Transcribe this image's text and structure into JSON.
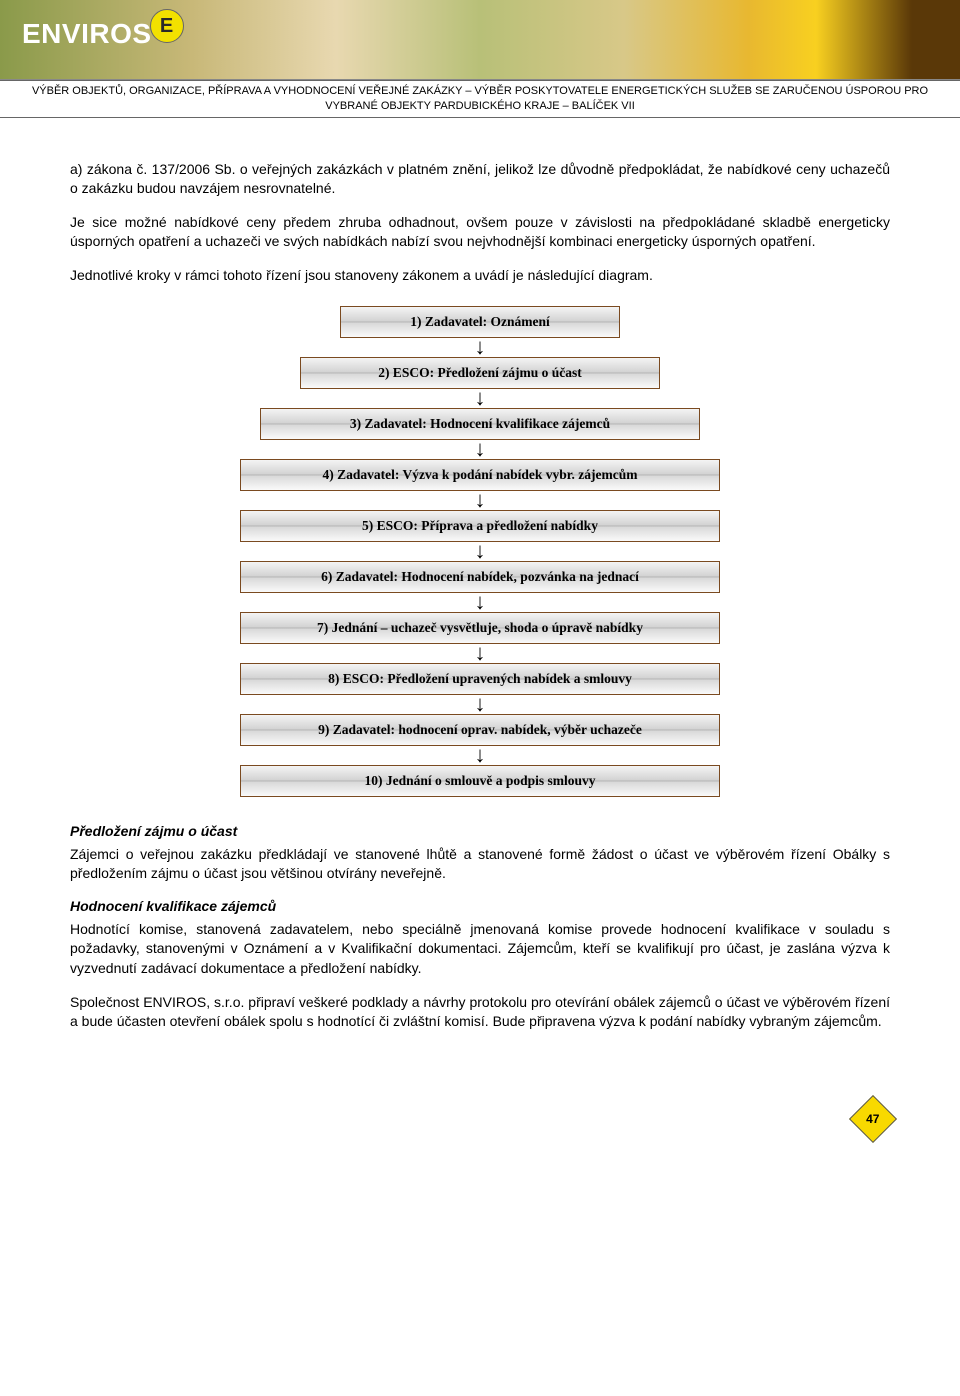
{
  "banner": {
    "logo_text": "ENVIROS",
    "logo_badge": "E"
  },
  "doc_title": {
    "line1": "VÝBĚR OBJEKTŮ, ORGANIZACE, PŘÍPRAVA A VYHODNOCENÍ VEŘEJNÉ ZAKÁZKY – VÝBĚR POSKYTOVATELE ENERGETICKÝCH SLUŽEB SE ZARUČENOU ÚSPOROU PRO",
    "line2": "VYBRANÉ OBJEKTY PARDUBICKÉHO KRAJE – BALÍČEK VII"
  },
  "paragraphs": {
    "p1": "a) zákona č. 137/2006 Sb. o veřejných zakázkách v platném znění, jelikož lze důvodně předpokládat, že nabídkové ceny uchazečů o zakázku budou navzájem nesrovnatelné.",
    "p2": "Je sice možné nabídkové ceny předem zhruba odhadnout, ovšem pouze v závislosti na předpokládané skladbě energeticky úsporných opatření a uchazeči ve svých nabídkách nabízí svou nejvhodnější kombinaci energeticky úsporných opatření.",
    "p3": "Jednotlivé kroky v rámci tohoto řízení jsou stanoveny zákonem a uvádí je následující diagram."
  },
  "diagram": {
    "steps": [
      "1) Zadavatel: Oznámení",
      "2) ESCO: Předložení zájmu o účast",
      "3) Zadavatel: Hodnocení kvalifikace zájemců",
      "4) Zadavatel: Výzva k podání nabídek vybr. zájemcům",
      "5) ESCO: Příprava a předložení nabídky",
      "6) Zadavatel: Hodnocení nabídek, pozvánka na jednací",
      "7) Jednání – uchazeč vysvětluje, shoda o úpravě nabídky",
      "8) ESCO: Předložení upravených nabídek a smlouvy",
      "9) Zadavatel: hodnocení oprav. nabídek, výběr uchazeče",
      "10) Jednání o smlouvě a podpis smlouvy"
    ],
    "box_border_color": "#7a4a20",
    "box_gradient_top": "#f4f4f4",
    "box_gradient_bottom": "#fafafa",
    "text_font": "Times New Roman"
  },
  "sections": {
    "s1_heading": "Předložení zájmu o účast",
    "s1_body": "Zájemci o veřejnou zakázku předkládají ve stanovené lhůtě a stanovené formě žádost o účast ve výběrovém řízení Obálky s předložením zájmu o účast jsou většinou otvírány neveřejně.",
    "s2_heading": "Hodnocení kvalifikace zájemců",
    "s2_body": "Hodnotící komise, stanovená zadavatelem, nebo speciálně jmenovaná komise provede hodnocení kvalifikace v souladu s požadavky, stanovenými v Oznámení a v Kvalifikační dokumentaci. Zájemcům, kteří se kvalifikují pro účast, je zaslána výzva k vyzvednutí zadávací dokumentace a předložení nabídky.",
    "s3_body": "Společnost ENVIROS, s.r.o. připraví veškeré podklady a návrhy protokolu pro otevírání obálek zájemců o účast ve výběrovém řízení a bude účasten otevření obálek spolu s hodnotící či zvláštní komisí. Bude připravena výzva k podání nabídky vybraným zájemcům."
  },
  "page_number": "47",
  "colors": {
    "page_diamond_bg": "#f8d900",
    "logo_badge_bg": "#f2e100",
    "text_color": "#000000"
  }
}
